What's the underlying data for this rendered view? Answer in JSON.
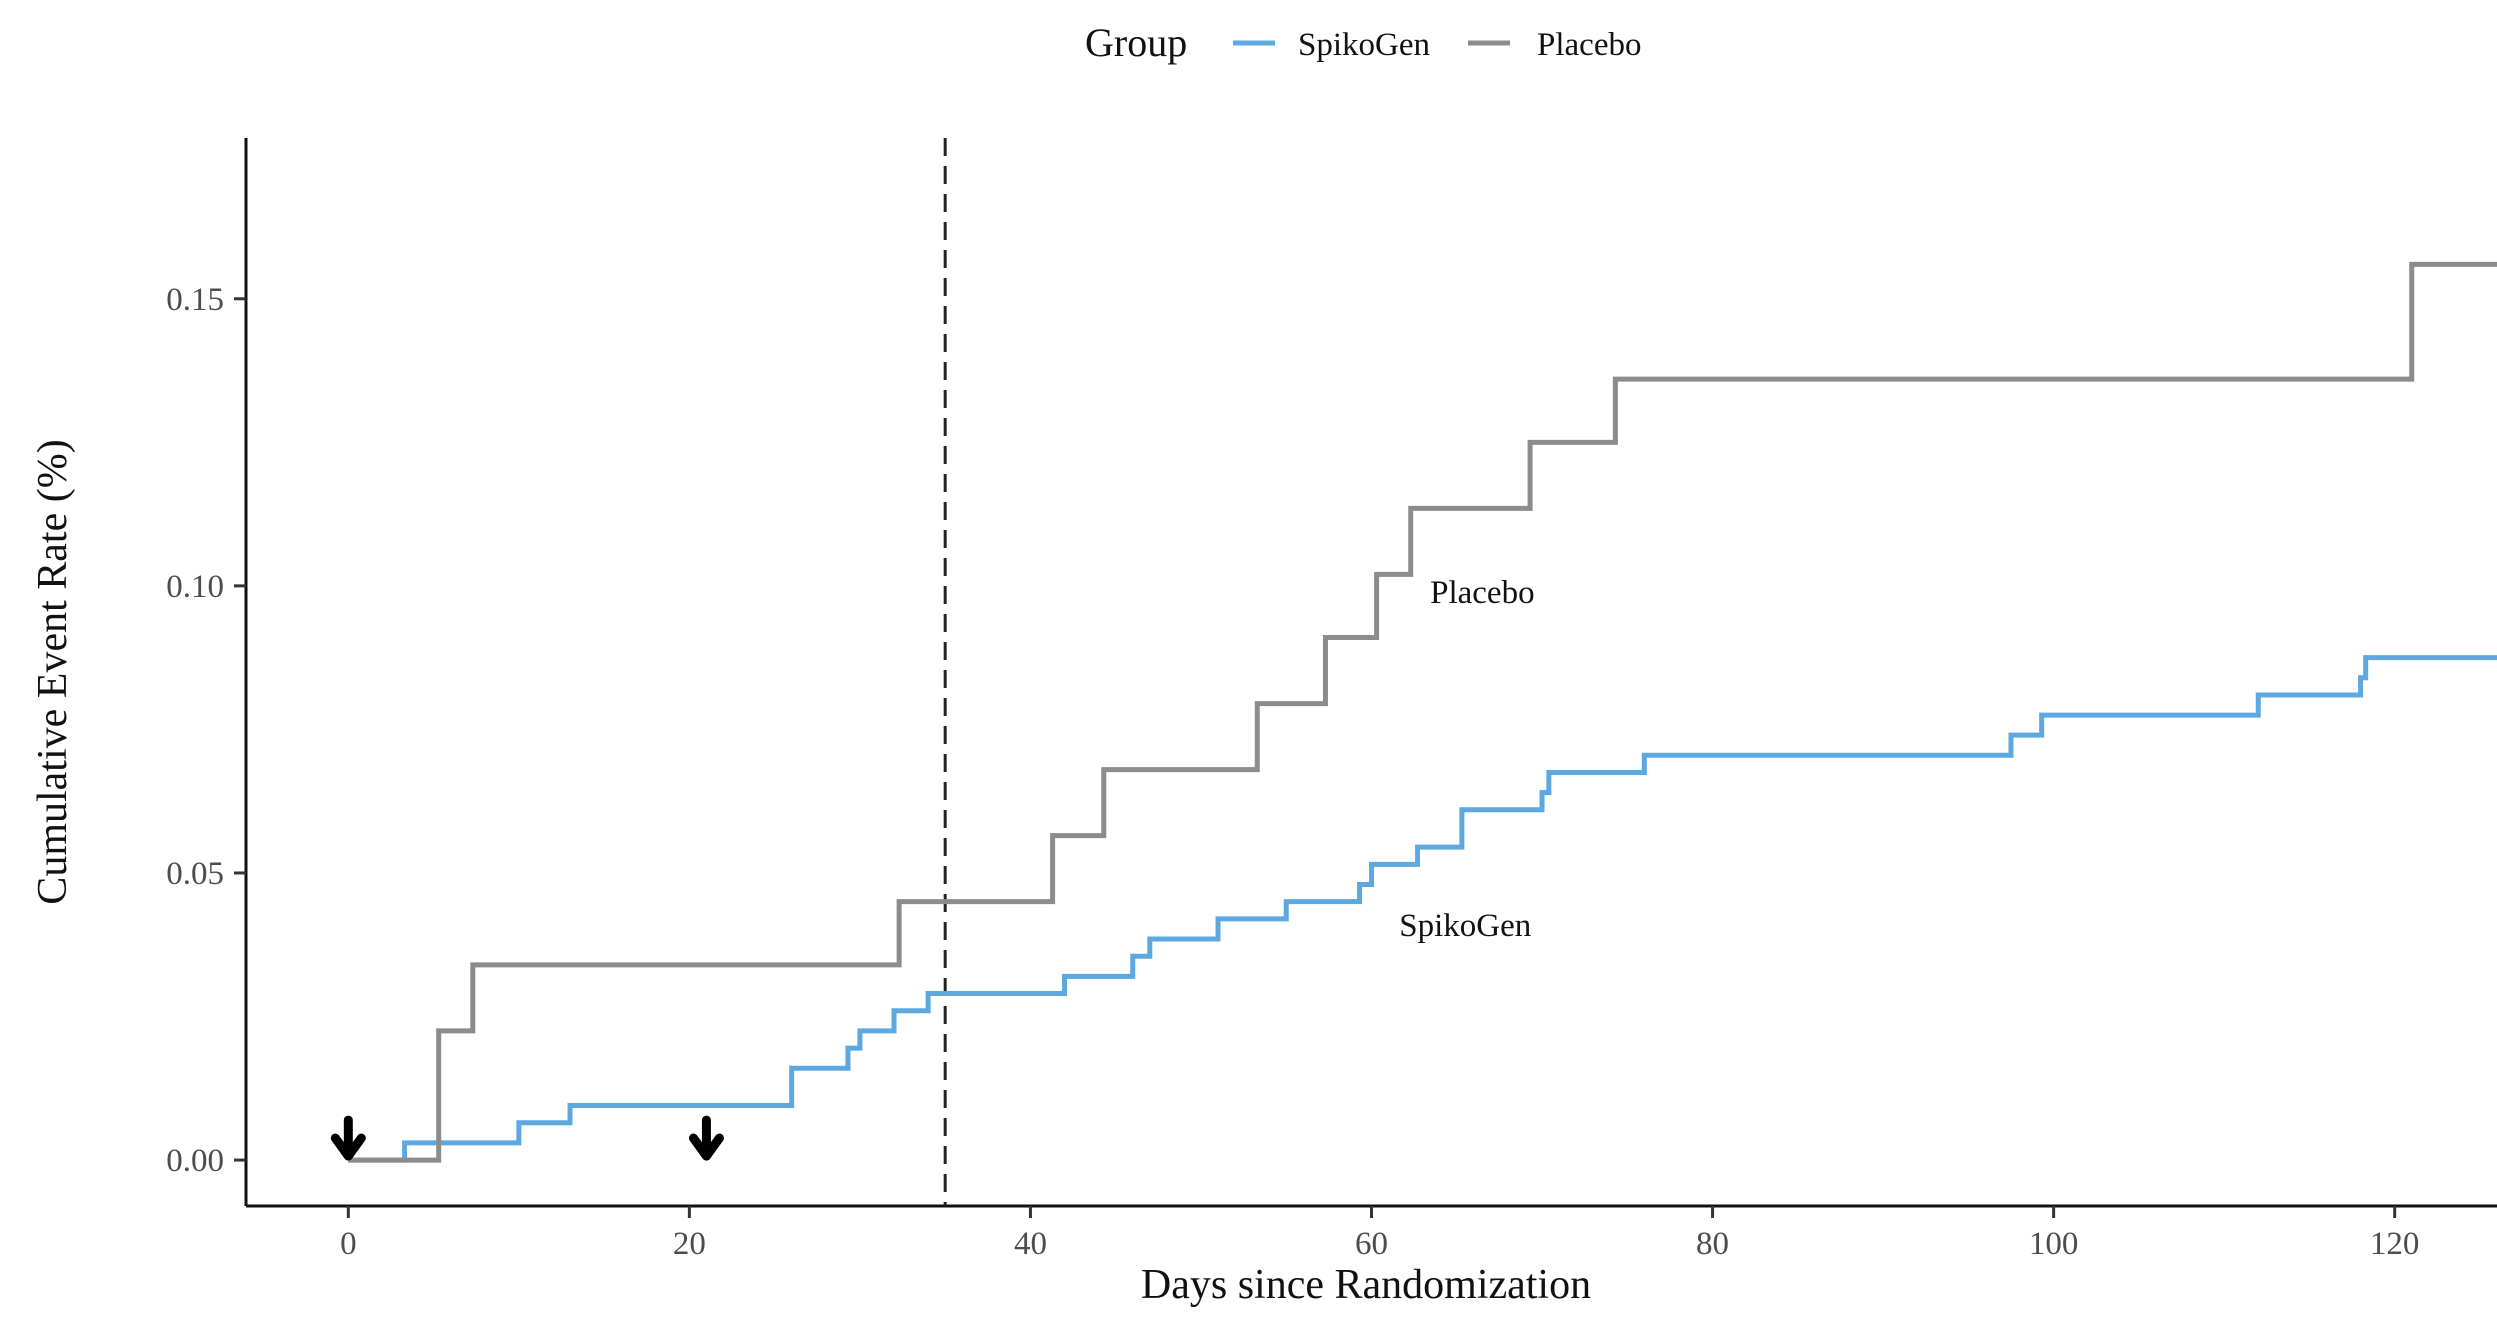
{
  "chart_data": {
    "type": "line",
    "step": true,
    "title": "",
    "xlabel": "Days since Randomization",
    "ylabel": "Cumulative Event Rate (%)",
    "xlim": [
      -6,
      126
    ],
    "ylim": [
      -0.008,
      0.178
    ],
    "x_ticks": [
      0,
      20,
      40,
      60,
      80,
      100,
      120
    ],
    "x_tick_labels": [
      "0",
      "20",
      "40",
      "60",
      "80",
      "100",
      "120"
    ],
    "y_ticks": [
      0.0,
      0.05,
      0.1,
      0.15
    ],
    "y_tick_labels": [
      "0.00",
      "0.05",
      "0.10",
      "0.15"
    ],
    "grid": false,
    "legend": {
      "title": "Group",
      "position": "top",
      "entries": [
        "SpikoGen",
        "Placebo"
      ]
    },
    "reference_line": {
      "x": 35,
      "style": "dashed",
      "color": "#222222"
    },
    "markers": [
      {
        "x": 0,
        "y": 0.0,
        "symbol": "down-arrow"
      },
      {
        "x": 21,
        "y": 0.0,
        "symbol": "down-arrow"
      }
    ],
    "annotations": [
      {
        "text": "Placebo",
        "x": 66.5,
        "y": 0.097
      },
      {
        "text": "SpikoGen",
        "x": 65.5,
        "y": 0.039
      }
    ],
    "series": [
      {
        "name": "SpikoGen",
        "color": "#5da8e0",
        "x": [
          0,
          3.3,
          10,
          13,
          26,
          29.3,
          30,
          32,
          34,
          42,
          46,
          47,
          51,
          55,
          59.3,
          60,
          62.7,
          65.3,
          70,
          70.4,
          76,
          97.5,
          99.3,
          112,
          118,
          118.3,
          126
        ],
        "y": [
          0.0,
          0.003,
          0.0065,
          0.0095,
          0.016,
          0.0195,
          0.0225,
          0.026,
          0.029,
          0.032,
          0.0355,
          0.0385,
          0.042,
          0.045,
          0.048,
          0.0515,
          0.0545,
          0.061,
          0.064,
          0.0675,
          0.0705,
          0.074,
          0.0775,
          0.081,
          0.084,
          0.0875,
          0.0875
        ]
      },
      {
        "name": "Placebo",
        "color": "#8c8c8c",
        "x": [
          0,
          5.3,
          7.3,
          32.3,
          41.3,
          44.3,
          53.3,
          57.3,
          60.3,
          62.3,
          69.3,
          74.3,
          121,
          126
        ],
        "y": [
          0.0,
          0.0225,
          0.034,
          0.045,
          0.0565,
          0.068,
          0.0795,
          0.091,
          0.102,
          0.1135,
          0.125,
          0.136,
          0.156,
          0.156
        ]
      }
    ]
  }
}
